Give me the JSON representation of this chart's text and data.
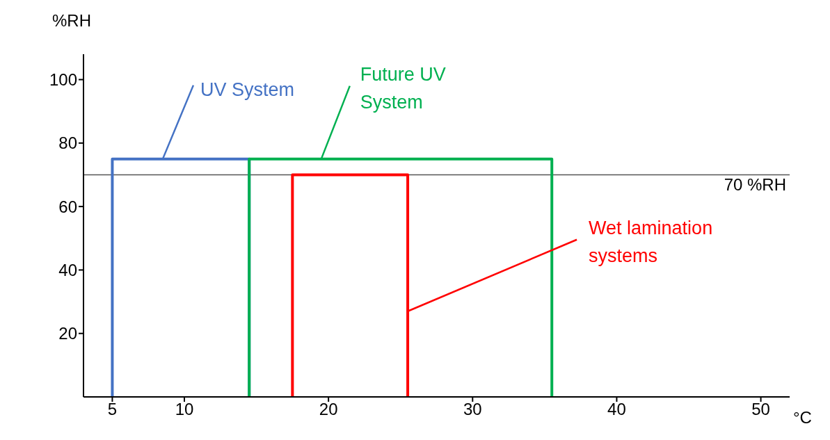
{
  "chart_data": {
    "type": "line",
    "xlabel": "°C",
    "ylabel": "%RH",
    "xlim": [
      3,
      52
    ],
    "xticks": [
      5,
      10,
      20,
      30,
      40,
      50
    ],
    "ylim": [
      0,
      108
    ],
    "yticks": [
      20,
      40,
      60,
      80,
      100
    ],
    "grid": false,
    "legend": false,
    "marker": "none",
    "line_style": "solid",
    "series": [
      {
        "color": "#4472c4",
        "x": [
          5,
          5,
          14.5,
          14.5
        ],
        "values": [
          0,
          75,
          75,
          0
        ]
      },
      {
        "color": "#00b050",
        "x": [
          14.5,
          14.5,
          35.5,
          35.5
        ],
        "values": [
          0,
          75,
          75,
          0
        ]
      },
      {
        "color": "#ff0000",
        "x": [
          17.5,
          17.5,
          25.5,
          25.5
        ],
        "values": [
          0,
          70,
          70,
          0
        ]
      }
    ],
    "ref_lines": [
      {
        "axis": "y",
        "value": 70,
        "label": "70 %RH",
        "color": "#555555"
      }
    ],
    "annotations": [
      {
        "text": "UV System",
        "x": 8.5,
        "y": 75
      },
      {
        "text": "Future UV System",
        "x": 19.5,
        "y": 75
      },
      {
        "text": "Wet lamination systems",
        "x": 25.5,
        "y": 27
      }
    ]
  }
}
